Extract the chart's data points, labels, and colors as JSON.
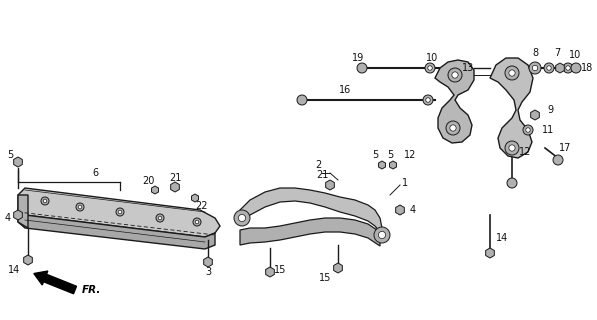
{
  "bg_color": "#ffffff",
  "lc": "#1a1a1a",
  "gray_fill": "#b0b0b0",
  "gray_light": "#d0d0d0",
  "figsize": [
    5.97,
    3.2
  ],
  "dpi": 100,
  "xlim": [
    0,
    597
  ],
  "ylim": [
    0,
    320
  ]
}
